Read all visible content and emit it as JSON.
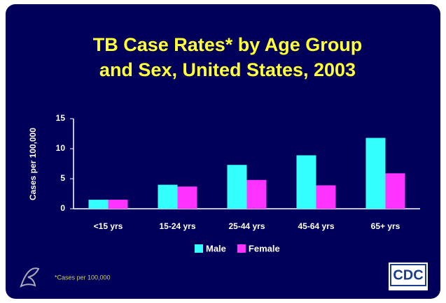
{
  "chart_data": {
    "type": "bar",
    "title_lines": [
      "TB Case Rates* by Age Group",
      "and Sex, United States, 2003"
    ],
    "y_label": "Cases per 100,000",
    "categories": [
      "<15 yrs",
      "15-24 yrs",
      "25-44 yrs",
      "45-64 yrs",
      "65+ yrs"
    ],
    "series": [
      {
        "name": "Male",
        "color": "#33ffff",
        "values": [
          1.5,
          4.0,
          7.3,
          8.9,
          11.8
        ]
      },
      {
        "name": "Female",
        "color": "#ff33ff",
        "values": [
          1.5,
          3.7,
          4.8,
          3.9,
          5.9
        ]
      }
    ],
    "ylim": [
      0,
      15
    ],
    "yticks": [
      0,
      5,
      10,
      15
    ],
    "grid": false,
    "legend": "bottom",
    "footnote": "*Cases per 100,000",
    "logo": "CDC"
  }
}
